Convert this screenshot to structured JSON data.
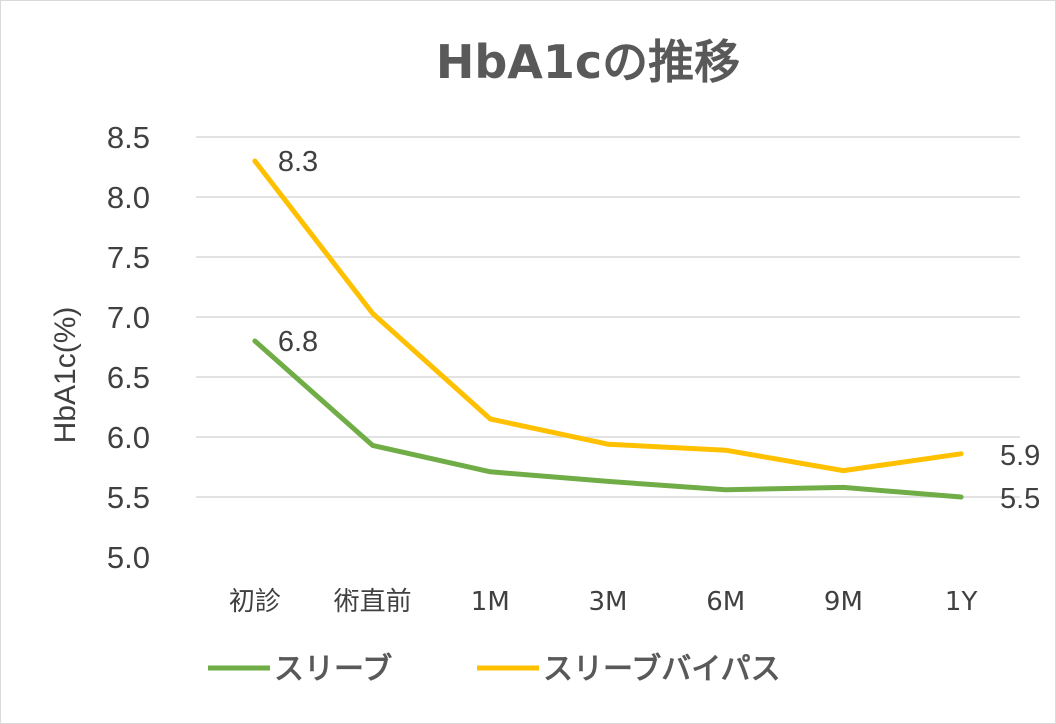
{
  "chart_data": {
    "type": "line",
    "title": "HbA1cの推移",
    "ylabel": "HbA1c(%)",
    "xlabel": "",
    "categories": [
      "初診",
      "術直前",
      "1M",
      "3M",
      "6M",
      "9M",
      "1Y"
    ],
    "y_ticks": [
      "5.0",
      "5.5",
      "6.0",
      "6.5",
      "7.0",
      "7.5",
      "8.0",
      "8.5"
    ],
    "ylim": [
      5.0,
      8.5
    ],
    "grid": true,
    "legend_position": "bottom",
    "series": [
      {
        "name": "スリーブ",
        "color": "#70ad47",
        "values": [
          6.8,
          5.93,
          5.71,
          5.63,
          5.56,
          5.58,
          5.5
        ],
        "data_labels": [
          {
            "index": 0,
            "text": "6.8"
          },
          {
            "index": 6,
            "text": "5.5"
          }
        ]
      },
      {
        "name": "スリーブバイパス",
        "color": "#ffc000",
        "values": [
          8.3,
          7.03,
          6.15,
          5.94,
          5.89,
          5.72,
          5.86
        ],
        "data_labels": [
          {
            "index": 0,
            "text": "8.3"
          },
          {
            "index": 6,
            "text": "5.9"
          }
        ]
      }
    ]
  }
}
